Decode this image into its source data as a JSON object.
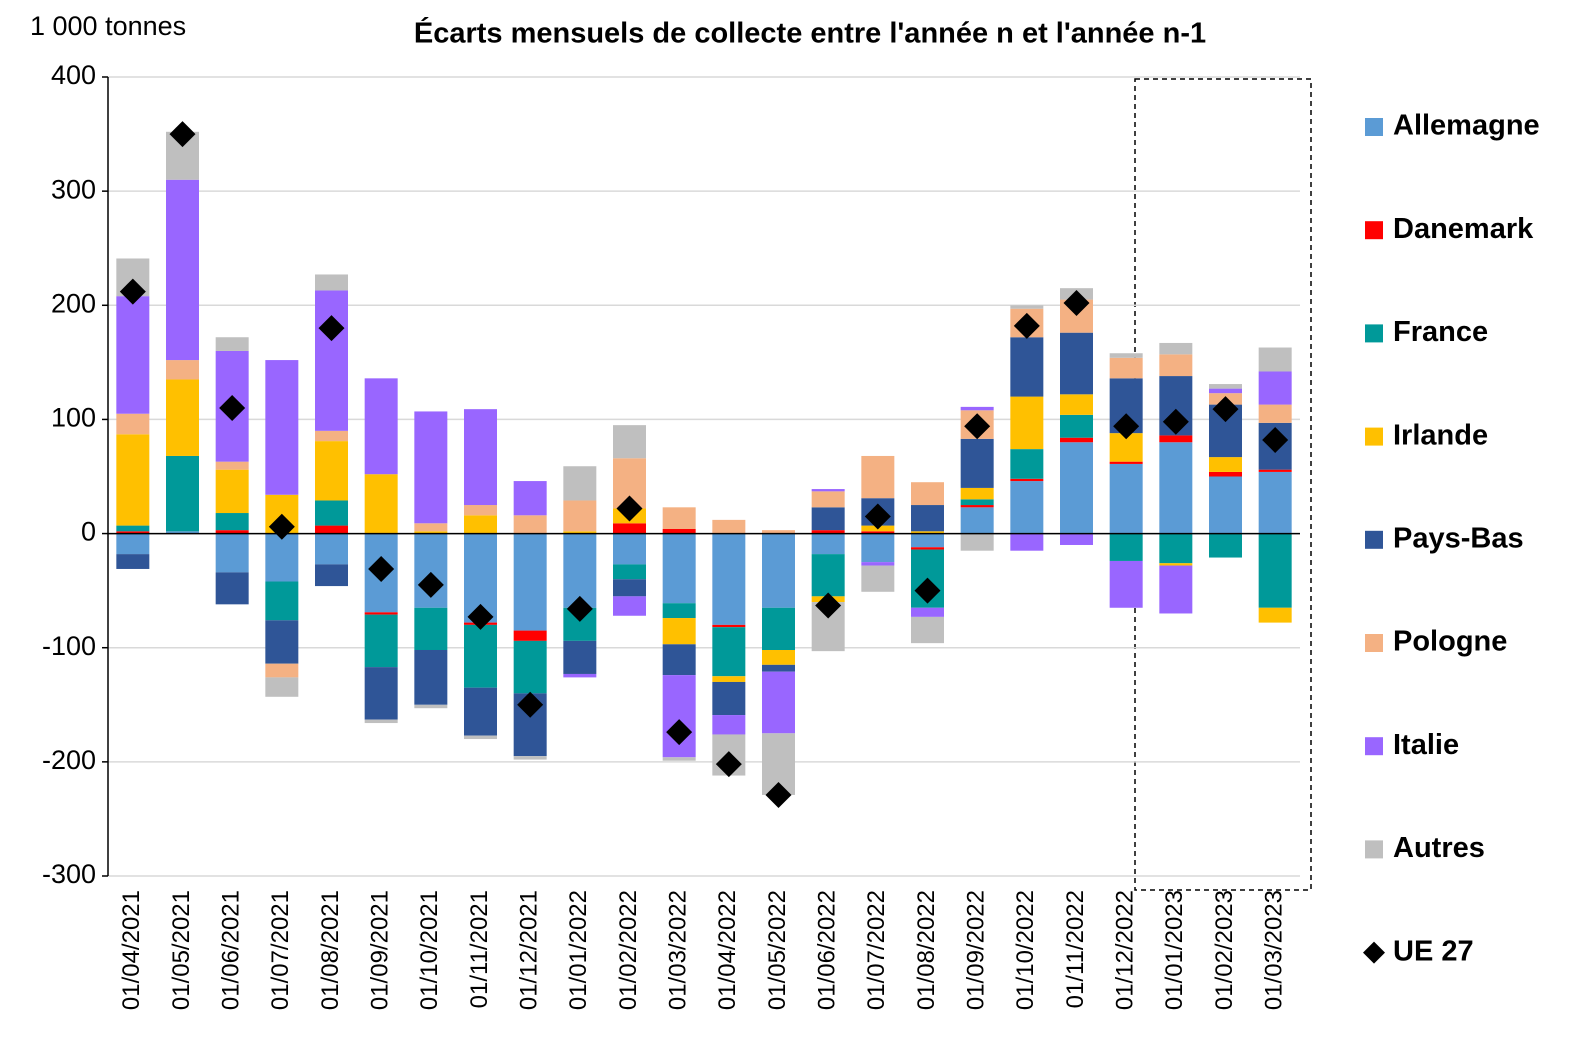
{
  "chart_data": {
    "type": "bar",
    "stacked": true,
    "title": "Écarts mensuels de collecte entre l'année n et l'année n-1",
    "y_unit_label": "1 000 tonnes",
    "categories": [
      "01/04/2021",
      "01/05/2021",
      "01/06/2021",
      "01/07/2021",
      "01/08/2021",
      "01/09/2021",
      "01/10/2021",
      "01/11/2021",
      "01/12/2021",
      "01/01/2022",
      "01/02/2022",
      "01/03/2022",
      "01/04/2022",
      "01/05/2022",
      "01/06/2022",
      "01/07/2022",
      "01/08/2022",
      "01/09/2022",
      "01/10/2022",
      "01/11/2022",
      "01/12/2022",
      "01/01/2023",
      "01/02/2023",
      "01/03/2023"
    ],
    "series": [
      {
        "name": "Allemagne",
        "color": "#5b9bd5",
        "values": [
          -18,
          2,
          -34,
          -42,
          -27,
          -69,
          -65,
          -78,
          -85,
          -65,
          -27,
          -61,
          -80,
          -65,
          -18,
          -25,
          -12,
          23,
          46,
          80,
          61,
          80,
          50,
          54
        ]
      },
      {
        "name": "Danemark",
        "color": "#ff0000",
        "values": [
          2,
          0,
          3,
          0,
          7,
          -2,
          0,
          -2,
          -9,
          0,
          9,
          4,
          -2,
          0,
          3,
          2,
          -2,
          2,
          2,
          4,
          2,
          6,
          4,
          2
        ]
      },
      {
        "name": "France",
        "color": "#009999",
        "values": [
          5,
          66,
          15,
          -34,
          22,
          -46,
          -37,
          -55,
          -46,
          -29,
          -13,
          -13,
          -43,
          -37,
          -37,
          0,
          -51,
          5,
          26,
          20,
          -24,
          -26,
          -21,
          -65
        ]
      },
      {
        "name": "Irlande",
        "color": "#ffc000",
        "values": [
          80,
          67,
          38,
          34,
          52,
          52,
          2,
          16,
          0,
          2,
          13,
          -23,
          -5,
          -13,
          -5,
          5,
          2,
          10,
          46,
          18,
          25,
          -2,
          13,
          -13
        ]
      },
      {
        "name": "Pays-Bas",
        "color": "#2f5597",
        "values": [
          -13,
          0,
          -28,
          -38,
          -19,
          -46,
          -48,
          -42,
          -55,
          -29,
          -15,
          -27,
          -29,
          -6,
          20,
          24,
          23,
          43,
          52,
          54,
          48,
          52,
          46,
          41
        ]
      },
      {
        "name": "Pologne",
        "color": "#f4b183",
        "values": [
          18,
          17,
          7,
          -12,
          9,
          0,
          7,
          9,
          16,
          27,
          44,
          19,
          12,
          3,
          14,
          37,
          20,
          25,
          25,
          29,
          18,
          19,
          10,
          16
        ]
      },
      {
        "name": "Italie",
        "color": "#9966ff",
        "values": [
          103,
          158,
          97,
          118,
          123,
          84,
          98,
          84,
          30,
          -3,
          -17,
          -72,
          -17,
          -54,
          2,
          -3,
          -8,
          3,
          -15,
          -10,
          -41,
          -42,
          4,
          29
        ]
      },
      {
        "name": "Autres",
        "color": "#bfbfbf",
        "values": [
          33,
          42,
          12,
          -17,
          14,
          -3,
          -3,
          -3,
          -3,
          30,
          29,
          -3,
          -36,
          -54,
          -43,
          -23,
          -23,
          -15,
          3,
          10,
          4,
          10,
          4,
          21
        ]
      }
    ],
    "markers": {
      "name": "UE 27",
      "color": "#000000",
      "values": [
        212,
        350,
        110,
        6,
        180,
        -31,
        -45,
        -73,
        -150,
        -66,
        22,
        -174,
        -202,
        -229,
        -63,
        15,
        -50,
        94,
        182,
        202,
        94,
        98,
        109,
        82
      ]
    },
    "ylim": [
      -300,
      400
    ],
    "yticks": [
      -300,
      -200,
      -100,
      0,
      100,
      200,
      300,
      400
    ],
    "grid": true
  }
}
